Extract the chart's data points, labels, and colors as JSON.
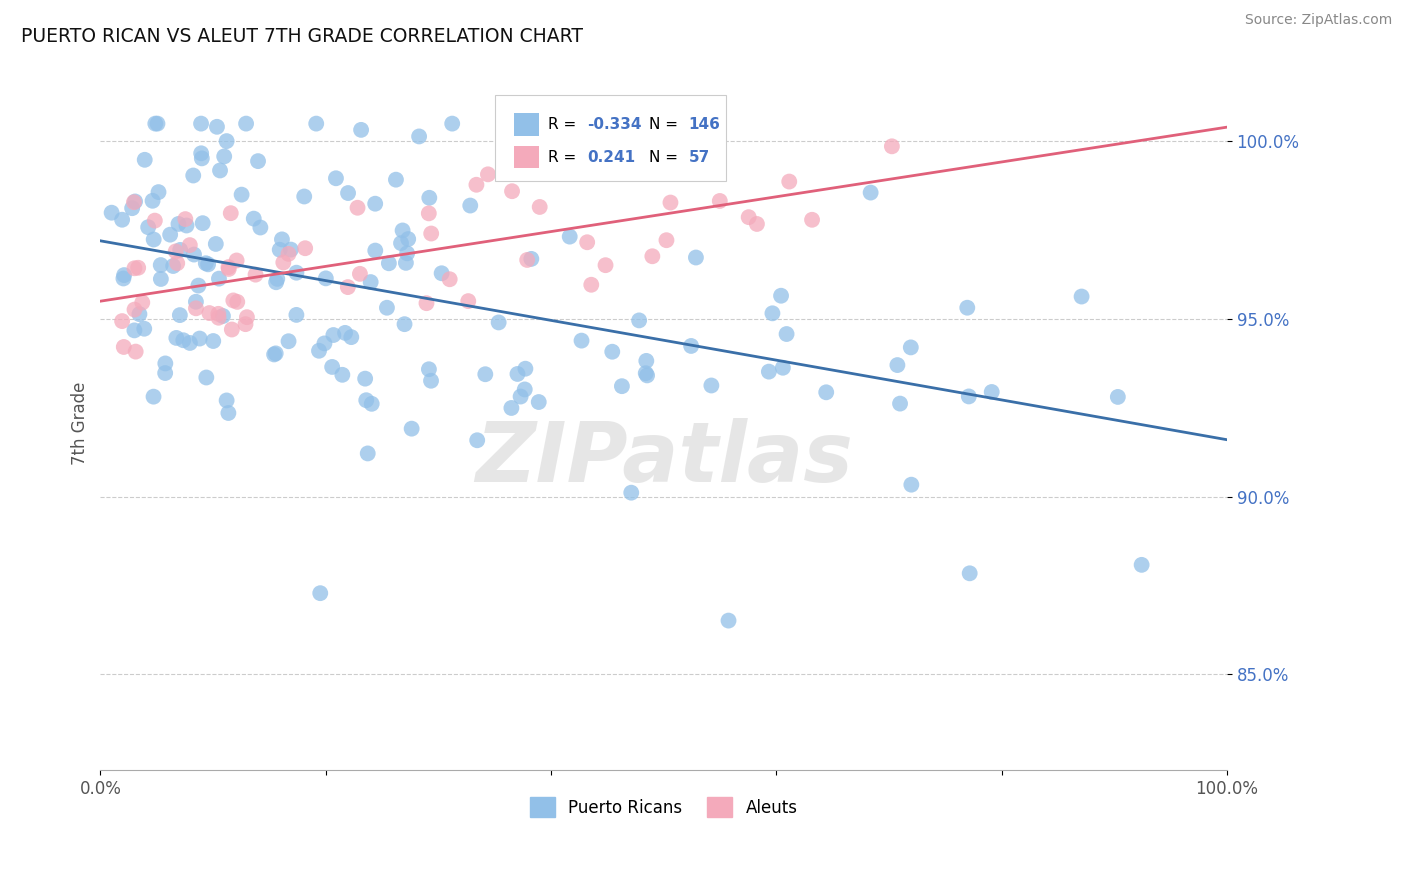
{
  "title": "PUERTO RICAN VS ALEUT 7TH GRADE CORRELATION CHART",
  "source_text": "Source: ZipAtlas.com",
  "ylabel": "7th Grade",
  "xlim": [
    0.0,
    1.0
  ],
  "ylim": [
    0.823,
    1.018
  ],
  "y_ticks": [
    0.85,
    0.9,
    0.95,
    1.0
  ],
  "y_tick_labels": [
    "85.0%",
    "90.0%",
    "95.0%",
    "100.0%"
  ],
  "x_ticks": [
    0.0,
    0.2,
    0.4,
    0.6,
    0.8,
    1.0
  ],
  "x_tick_labels": [
    "0.0%",
    "",
    "",
    "",
    "",
    "100.0%"
  ],
  "blue_R": -0.334,
  "blue_N": 146,
  "pink_R": 0.241,
  "pink_N": 57,
  "blue_color": "#92C0E8",
  "pink_color": "#F4AABB",
  "blue_line_color": "#3A6FA8",
  "pink_line_color": "#E0607A",
  "grid_color": "#CCCCCC",
  "background_color": "#FFFFFF",
  "tick_color": "#4472C4",
  "blue_line_start_y": 0.972,
  "blue_line_end_y": 0.916,
  "pink_line_start_y": 0.955,
  "pink_line_end_y": 1.004,
  "legend_R_blue": "-0.334",
  "legend_N_blue": "146",
  "legend_R_pink": "0.241",
  "legend_N_pink": "57",
  "legend_label_blue": "Puerto Ricans",
  "legend_label_pink": "Aleuts",
  "watermark": "ZIPatlas"
}
